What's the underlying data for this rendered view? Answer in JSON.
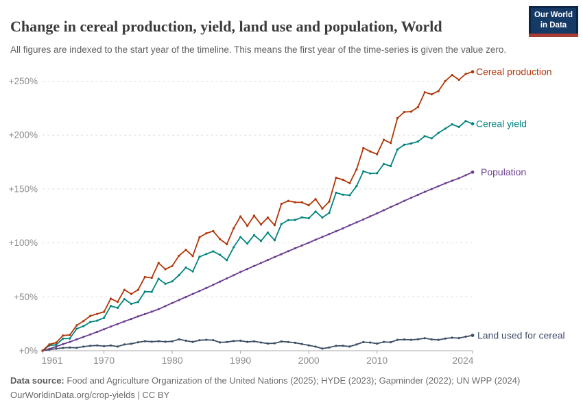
{
  "header": {
    "title": "Change in cereal production, yield, land use and population, World",
    "subtitle": "All figures are indexed to the start year of the timeline. This means the first year of the time-series is given the value zero.",
    "logo": {
      "line1": "Our World",
      "line2": "in Data",
      "bg_color": "#163A66",
      "accent_color": "#A93C33"
    }
  },
  "footer": {
    "source_label": "Data source:",
    "source_text": " Food and Agriculture Organization of the United Nations (2025); HYDE (2023); Gapminder (2022); UN WPP (2024)",
    "link_line": "OurWorldinData.org/crop-yields | CC BY"
  },
  "colors": {
    "grid": "#DEDEDE",
    "axis": "#A9A9A9",
    "tick_text": "#8C8C8C",
    "title_text": "#3b3b3b",
    "subtitle_text": "#5e5e5e",
    "footer_text": "#6b6b6b"
  },
  "chart_data": {
    "type": "line",
    "title": "Change in cereal production, yield, land use and population, World",
    "xlabel": "",
    "ylabel": "",
    "xlim": [
      1961,
      2024
    ],
    "ylim": [
      0,
      250
    ],
    "grid": "horizontal-dashed",
    "legend_position": "right-end-labels",
    "x_ticks": [
      "1961",
      "1970",
      "1980",
      "1990",
      "2000",
      "2010",
      "2024"
    ],
    "y_ticks": [
      {
        "value": 0,
        "label": "+0%"
      },
      {
        "value": 50,
        "label": "+50%"
      },
      {
        "value": 100,
        "label": "+100%"
      },
      {
        "value": 150,
        "label": "+150%"
      },
      {
        "value": 200,
        "label": "+200%"
      },
      {
        "value": 250,
        "label": "+250%"
      }
    ],
    "x": [
      1961,
      1962,
      1963,
      1964,
      1965,
      1966,
      1967,
      1968,
      1969,
      1970,
      1971,
      1972,
      1973,
      1974,
      1975,
      1976,
      1977,
      1978,
      1979,
      1980,
      1981,
      1982,
      1983,
      1984,
      1985,
      1986,
      1987,
      1988,
      1989,
      1990,
      1991,
      1992,
      1993,
      1994,
      1995,
      1996,
      1997,
      1998,
      1999,
      2000,
      2001,
      2002,
      2003,
      2004,
      2005,
      2006,
      2007,
      2008,
      2009,
      2010,
      2011,
      2012,
      2013,
      2014,
      2015,
      2016,
      2017,
      2018,
      2019,
      2020,
      2021,
      2022,
      2023,
      2024
    ],
    "series": [
      {
        "name": "Cereal production",
        "color": "#B13507",
        "unit": "%",
        "values": [
          0,
          5.9,
          7.5,
          14.1,
          14.6,
          23.5,
          27.5,
          32.3,
          34.2,
          36,
          48.3,
          45.3,
          56.5,
          52.7,
          56.5,
          68.4,
          67.6,
          81.4,
          75.6,
          78.6,
          88.1,
          93.6,
          87.8,
          105.3,
          108.9,
          110.9,
          103.4,
          98.8,
          113.6,
          124.5,
          115.8,
          125.2,
          117.1,
          123.5,
          116.4,
          136.2,
          139,
          137.7,
          137.6,
          134.9,
          140.6,
          131.8,
          138.4,
          160.4,
          158.6,
          155.4,
          168.1,
          188,
          184.8,
          182.3,
          195.6,
          192.6,
          215.7,
          221.4,
          221.7,
          225.9,
          239.7,
          237.8,
          240.8,
          250.1,
          255.7,
          251.3,
          256.7,
          258.7
        ]
      },
      {
        "name": "Cereal yield",
        "color": "#00847E",
        "unit": "%",
        "values": [
          0,
          4.9,
          5.5,
          11.2,
          11.4,
          20.3,
          22.8,
          26.6,
          27.9,
          30.5,
          41.5,
          39.8,
          47.9,
          43.5,
          45.2,
          54.8,
          54.6,
          66.7,
          62.1,
          64.3,
          70.1,
          77.1,
          73.6,
          87.1,
          89.7,
          92.1,
          88.9,
          83.9,
          96,
          105.4,
          99.4,
          107.2,
          101.8,
          109.5,
          102.4,
          117.5,
          121.1,
          121.3,
          123.7,
          122.9,
          129.1,
          123.5,
          127.9,
          146.6,
          144.7,
          144.2,
          152.7,
          166.4,
          164.4,
          164.6,
          173.2,
          171.2,
          186.7,
          191.1,
          192.2,
          194,
          199,
          197,
          202,
          206,
          210,
          207.5,
          213,
          210.5
        ]
      },
      {
        "name": "Population",
        "color": "#6D3E91",
        "unit": "%",
        "values": [
          0,
          1.8,
          3.9,
          6.1,
          8.2,
          10.5,
          12.8,
          15.1,
          17.5,
          19.9,
          22.4,
          24.8,
          27.2,
          29.5,
          31.8,
          34,
          36.2,
          38.5,
          41.4,
          44.3,
          47,
          49.8,
          52.6,
          55.4,
          58.2,
          61.1,
          64.1,
          67.1,
          70,
          73,
          75.8,
          78.6,
          81.4,
          84.1,
          86.9,
          89.6,
          92.3,
          95,
          97.6,
          100.2,
          102.9,
          105.5,
          108.2,
          110.8,
          113.5,
          116.3,
          119,
          121.8,
          124.6,
          127.4,
          130.3,
          133.2,
          136.1,
          139,
          141.8,
          144.6,
          147.3,
          150,
          152.6,
          155.2,
          157.6,
          160,
          162.8,
          165.6
        ]
      },
      {
        "name": "Land used for cereal",
        "color": "#3C4E66",
        "unit": "%",
        "values": [
          0,
          1,
          1.9,
          2.6,
          2.9,
          2.7,
          3.8,
          4.5,
          4.9,
          4.2,
          4.8,
          3.9,
          5.8,
          6.4,
          7.8,
          8.8,
          8.4,
          8.8,
          8.3,
          8.7,
          10.6,
          9.3,
          8.2,
          9.7,
          10.1,
          9.8,
          7.7,
          8.1,
          9,
          9.3,
          8.2,
          8.7,
          7.6,
          6.7,
          6.9,
          8.6,
          8.1,
          7.4,
          6.2,
          5,
          3.8,
          2,
          3,
          4.5,
          4.6,
          3.9,
          5.8,
          8,
          7.6,
          6.6,
          8.2,
          7.9,
          10.1,
          10.4,
          10.1,
          10.6,
          11.6,
          10.5,
          10.1,
          11.3,
          12.1,
          11.7,
          13,
          14.2
        ]
      }
    ]
  }
}
